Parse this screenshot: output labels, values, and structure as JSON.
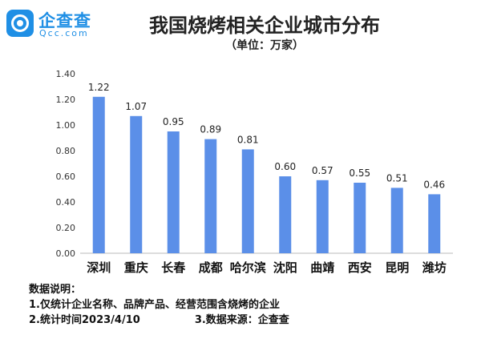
{
  "brand": {
    "name": "企查查",
    "domain": "Qcc.com"
  },
  "title": "我国烧烤相关企业城市分布",
  "unit": "（单位：万家）",
  "notes": {
    "heading": "数据说明：",
    "line1": "1.仅统计企业名称、品牌产品、经营范围含烧烤的企业",
    "line2a": "2.统计时间2023/4/10",
    "line2b": "3.数据来源：企查查"
  },
  "colors": {
    "bar": "#5b8fe8",
    "axis": "#bbbbbb",
    "text": "#222222"
  },
  "chart_data": {
    "type": "bar",
    "title": "我国烧烤相关企业城市分布",
    "categories": [
      "深圳",
      "重庆",
      "长春",
      "成都",
      "哈尔滨",
      "沈阳",
      "曲靖",
      "西安",
      "昆明",
      "潍坊"
    ],
    "values": [
      1.22,
      1.07,
      0.95,
      0.89,
      0.81,
      0.6,
      0.57,
      0.55,
      0.51,
      0.46
    ],
    "value_labels": [
      "1.22",
      "1.07",
      "0.95",
      "0.89",
      "0.81",
      "0.60",
      "0.57",
      "0.55",
      "0.51",
      "0.46"
    ],
    "yticks": [
      "0.00",
      "0.20",
      "0.40",
      "0.60",
      "0.80",
      "1.00",
      "1.20",
      "1.40"
    ],
    "ylim": [
      0,
      1.4
    ],
    "grid": false,
    "legend": "none"
  }
}
